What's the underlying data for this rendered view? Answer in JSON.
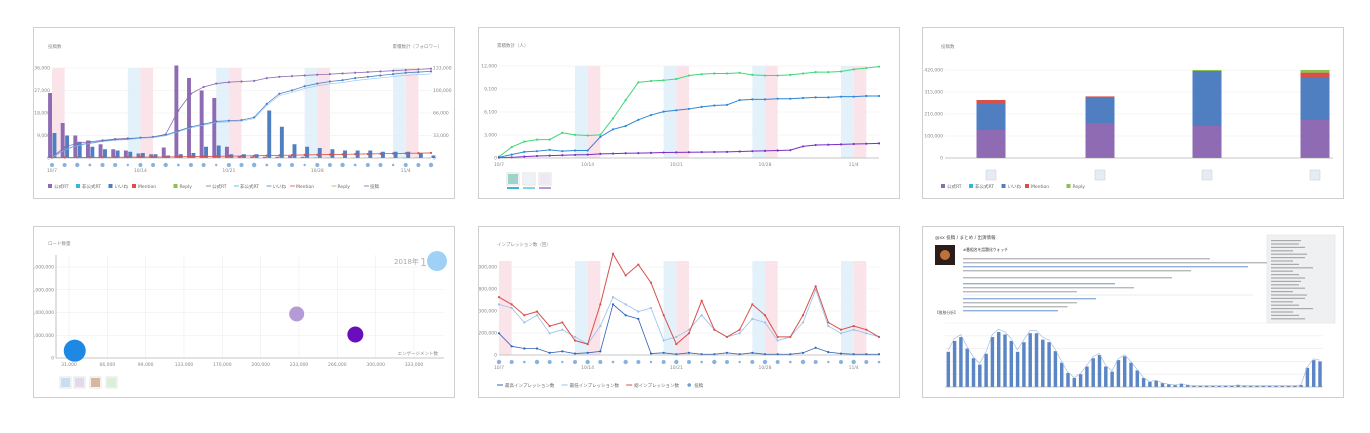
{
  "colors": {
    "purple": "#8e6bb3",
    "blue": "#4f7fc1",
    "red": "#d8504a",
    "green": "#8dc24f",
    "cyan": "#38b6d8",
    "lightpurple": "#b49ad6",
    "violet": "#7b22c4",
    "lightblue": "#8fc7f2",
    "pinkband": "#fbe3ea",
    "blueband": "#e3f1fb"
  },
  "panels": {
    "p1": {
      "ylabel_left": "投稿数",
      "ylabel_right": "累積数計（フォロワー）",
      "ticks_left": [
        "36,000",
        "27,000",
        "18,000",
        "9,000",
        "0"
      ],
      "ticks_right": [
        "133,000",
        "100,000",
        "66,000",
        "33,000",
        "0"
      ],
      "xticks": [
        "10/7",
        "10/14",
        "10/21",
        "10/28",
        "11/4"
      ],
      "legend": [
        "公式RT",
        "非公式RT",
        "いいね",
        "Mention",
        "Reply",
        "公式RT",
        "非公式RT",
        "いいね",
        "Mention",
        "Reply",
        "投稿"
      ]
    },
    "p2": {
      "ylabel": "累積数計（人）",
      "ticks": [
        "12,000",
        "9,100",
        "6,100",
        "3,000",
        "0"
      ],
      "xticks": [
        "10/7",
        "10/14",
        "10/21",
        "10/28",
        "11/4"
      ]
    },
    "p3": {
      "ylabel": "投稿数",
      "ticks": [
        "420,000",
        "315,000",
        "210,000",
        "100,000",
        "0"
      ],
      "legend": [
        "公式RT",
        "非公式RT",
        "いいね",
        "Mention",
        "Reply"
      ]
    },
    "p4": {
      "ylabel": "ロード数量",
      "ticks": [
        "62,000,000",
        "46,000,000",
        "31,000,000",
        "15,000,000",
        "0"
      ],
      "xticks": [
        "31,000",
        "66,000",
        "99,000",
        "133,000",
        "170,000",
        "200,000",
        "233,000",
        "266,000",
        "300,000",
        "333,000"
      ],
      "xlabel": "エンゲージメント数",
      "period": "2018年",
      "period_big": "11月"
    },
    "p5": {
      "ylabel": "インプレッション数（回）",
      "ticks": [
        "12,000,000",
        "9,800,000",
        "6,300,000",
        "3,200,000",
        "0"
      ],
      "xticks": [
        "10/7",
        "10/14",
        "10/21",
        "10/28",
        "11/4"
      ],
      "legend": [
        "最高インプレッション数",
        "最低インプレッション数",
        "総インプレッション数",
        "投稿"
      ]
    },
    "p6": {
      "header": "@xx 投稿 / まとめ / 出演情報",
      "subheader": "#番組名を話題化ウォッチ",
      "section": "【推移分析】"
    }
  },
  "chart_data": [
    {
      "type": "bar",
      "title": "",
      "ylabel": "投稿数",
      "categories": [
        "10/7",
        "10/8",
        "10/9",
        "10/10",
        "10/11",
        "10/12",
        "10/13",
        "10/14",
        "10/15",
        "10/16",
        "10/17",
        "10/18",
        "10/19",
        "10/20",
        "10/21",
        "10/22",
        "10/23",
        "10/24",
        "10/25",
        "10/26",
        "10/27",
        "10/28",
        "10/29",
        "10/30",
        "10/31",
        "11/1",
        "11/2",
        "11/3",
        "11/4",
        "11/5",
        "11/6"
      ],
      "series": [
        {
          "name": "公式RT",
          "values": [
            26000,
            14000,
            9000,
            7000,
            5500,
            3500,
            3000,
            1800,
            1500,
            4200,
            37000,
            32000,
            27000,
            24000,
            4500,
            800,
            600,
            500,
            500,
            900,
            500,
            200,
            100,
            100,
            100,
            100,
            100,
            100,
            100,
            100,
            100
          ]
        },
        {
          "name": "いいね",
          "values": [
            10000,
            9000,
            6500,
            4500,
            3500,
            3000,
            2500,
            2000,
            1500,
            1000,
            1500,
            2000,
            4500,
            5000,
            1500,
            1500,
            1500,
            19000,
            12500,
            5500,
            4500,
            4000,
            3500,
            3000,
            3000,
            3000,
            2500,
            2500,
            2500,
            2000,
            1000
          ]
        }
      ],
      "lines": [
        {
          "name": "公式RT",
          "values": [
            1000,
            16000,
            22000,
            24000,
            26000,
            28000,
            29000,
            29500,
            31000,
            35000,
            70000,
            95000,
            105000,
            110000,
            112000,
            113000,
            114000,
            118000,
            120000,
            121000,
            122000,
            123000,
            124000,
            125000,
            126000,
            127000,
            128000,
            129000,
            130000,
            131000,
            132000
          ]
        },
        {
          "name": "いいね",
          "values": [
            1000,
            12000,
            19000,
            22000,
            25000,
            27000,
            28000,
            30000,
            31000,
            34000,
            40000,
            46000,
            50000,
            54000,
            55000,
            56000,
            60000,
            80000,
            95000,
            100000,
            106000,
            110000,
            113000,
            115000,
            118000,
            120000,
            122000,
            124000,
            126000,
            127000,
            128000
          ]
        },
        {
          "name": "Mention",
          "values": [
            500,
            700,
            800,
            900,
            1000,
            1100,
            1200,
            1300,
            1400,
            1500,
            1800,
            2000,
            2300,
            2500,
            2800,
            3000,
            3300,
            3600,
            3900,
            4200,
            4500,
            4800,
            5100,
            5400,
            5700,
            6000,
            6300,
            6600,
            6900,
            7200,
            7500
          ]
        }
      ],
      "ylim": [
        0,
        36000
      ],
      "y2lim": [
        0,
        133000
      ]
    },
    {
      "type": "line",
      "ylabel": "累積数計（人）",
      "x": [
        "10/7",
        "10/8",
        "10/9",
        "10/10",
        "10/11",
        "10/12",
        "10/13",
        "10/14",
        "10/15",
        "10/16",
        "10/17",
        "10/18",
        "10/19",
        "10/20",
        "10/21",
        "10/22",
        "10/23",
        "10/24",
        "10/25",
        "10/26",
        "10/27",
        "10/28",
        "10/29",
        "10/30",
        "10/31",
        "11/1",
        "11/2",
        "11/3",
        "11/4",
        "11/5",
        "11/6"
      ],
      "series": [
        {
          "name": "",
          "values": [
            200,
            1600,
            2400,
            2700,
            2700,
            3700,
            3400,
            3300,
            3400,
            5800,
            8500,
            11100,
            11300,
            11400,
            11600,
            12100,
            12300,
            12400,
            12400,
            12500,
            12200,
            12100,
            12100,
            12200,
            12400,
            12600,
            12600,
            12700,
            13000,
            13200,
            13400
          ]
        },
        {
          "name": "",
          "values": [
            100,
            500,
            900,
            1000,
            1200,
            1000,
            1100,
            1100,
            3100,
            4200,
            4700,
            5600,
            6300,
            6800,
            7000,
            7200,
            7500,
            7700,
            7800,
            8500,
            8600,
            8600,
            8700,
            8700,
            8800,
            8900,
            8900,
            9000,
            9000,
            9100,
            9100
          ]
        },
        {
          "name": "",
          "values": [
            50,
            100,
            200,
            300,
            350,
            400,
            450,
            500,
            600,
            650,
            700,
            720,
            750,
            800,
            830,
            850,
            870,
            880,
            900,
            950,
            1000,
            1050,
            1100,
            1150,
            1700,
            1900,
            1950,
            2000,
            2050,
            2100,
            2150
          ]
        }
      ],
      "ylim": [
        0,
        13500
      ]
    },
    {
      "type": "bar",
      "ylabel": "投稿数",
      "categories": [
        "1",
        "2",
        "3",
        "4"
      ],
      "series": [
        {
          "name": "公式RT",
          "values": [
            140000,
            175000,
            160000,
            190000
          ]
        },
        {
          "name": "非公式RT",
          "values": [
            0,
            0,
            0,
            0
          ]
        },
        {
          "name": "いいね",
          "values": [
            130000,
            130000,
            270000,
            215000
          ]
        },
        {
          "name": "Mention",
          "values": [
            20000,
            3000,
            5000,
            22000
          ]
        },
        {
          "name": "Reply",
          "values": [
            0,
            0,
            5000,
            13000
          ]
        }
      ],
      "ylim": [
        0,
        440000
      ]
    },
    {
      "type": "scatter",
      "ylabel": "ロード数量",
      "xlabel": "エンゲージメント数",
      "points": [
        {
          "x": 35000,
          "y": 5000000,
          "size": 22
        },
        {
          "x": 228000,
          "y": 30000000,
          "size": 15
        },
        {
          "x": 279000,
          "y": 16000000,
          "size": 16
        },
        {
          "x": 350000,
          "y": 69000000,
          "size": 20
        }
      ],
      "xlim": [
        25000,
        410000
      ],
      "ylim": [
        0,
        75000000
      ]
    },
    {
      "type": "line",
      "ylabel": "インプレッション数（回）",
      "x": [
        "10/7",
        "10/8",
        "10/9",
        "10/10",
        "10/11",
        "10/12",
        "10/13",
        "10/14",
        "10/15",
        "10/16",
        "10/17",
        "10/18",
        "10/19",
        "10/20",
        "10/21",
        "10/22",
        "10/23",
        "10/24",
        "10/25",
        "10/26",
        "10/27",
        "10/28",
        "10/29",
        "10/30",
        "10/31",
        "11/1",
        "11/2",
        "11/3",
        "11/4",
        "11/5",
        "11/6"
      ],
      "series": [
        {
          "name": "最高インプレッション数",
          "values": [
            3000000,
            1200000,
            900000,
            900000,
            300000,
            500000,
            200000,
            300000,
            500000,
            7000000,
            5500000,
            5000000,
            200000,
            300000,
            100000,
            300000,
            100000,
            100000,
            300000,
            100000,
            300000,
            100000,
            100000,
            100000,
            300000,
            1000000,
            400000,
            200000,
            100000,
            100000,
            100000
          ]
        },
        {
          "name": "最低インプレッション数",
          "values": [
            7000000,
            6500000,
            4500000,
            5500000,
            3000000,
            3500000,
            2500000,
            1500000,
            4000000,
            8000000,
            7000000,
            6000000,
            6500000,
            2000000,
            2500000,
            3500000,
            5500000,
            3500000,
            2500000,
            3000000,
            5000000,
            4500000,
            2000000,
            2500000,
            4500000,
            9000000,
            4000000,
            3000000,
            3500000,
            3000000,
            2500000
          ]
        },
        {
          "name": "総インプレッション数",
          "values": [
            8000000,
            7000000,
            5500000,
            6000000,
            4000000,
            4500000,
            2000000,
            1500000,
            7000000,
            14000000,
            11000000,
            12500000,
            10000000,
            5500000,
            1500000,
            3000000,
            7500000,
            3500000,
            2500000,
            3500000,
            7000000,
            5500000,
            2500000,
            2500000,
            5500000,
            9500000,
            4500000,
            3500000,
            4000000,
            3500000,
            2500000
          ]
        }
      ],
      "ylim": [
        0,
        13000000
      ]
    }
  ]
}
